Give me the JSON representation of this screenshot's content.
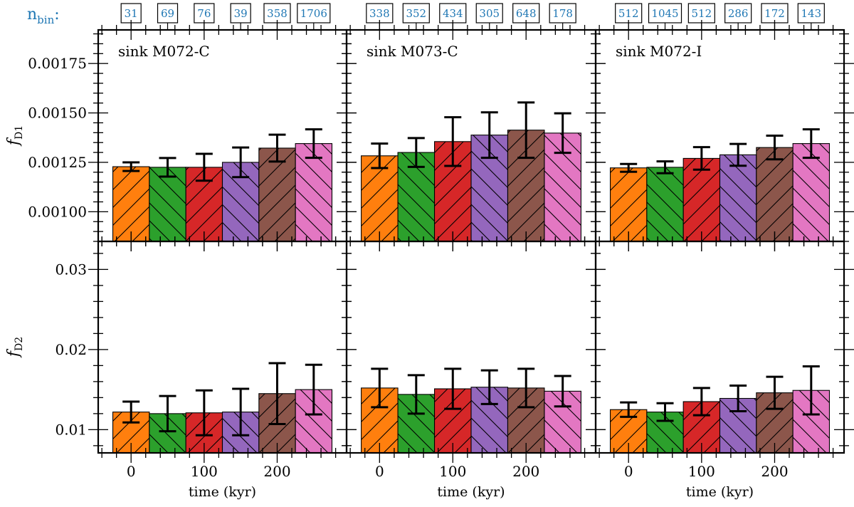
{
  "chart_data": {
    "type": "bar",
    "nbin_label": "n",
    "nbin_label_sub": "bin",
    "nbin_label_suffix": ":",
    "xlabel": "time (kyr)",
    "xticks": [
      0,
      100,
      200
    ],
    "x_centers": [
      0,
      50,
      100,
      150,
      200,
      250
    ],
    "bar_width": 50,
    "xlim": [
      -45,
      295
    ],
    "colors": [
      "#ff7f0e",
      "#2ca02c",
      "#d62728",
      "#9467bd",
      "#8c564b",
      "#e377c2"
    ],
    "hatch": [
      "/",
      "\\",
      "/",
      "\\",
      "/",
      "\\"
    ],
    "row_labels": [
      {
        "main": "f",
        "sub": "D1"
      },
      {
        "main": "f",
        "sub": "D2"
      }
    ],
    "row_ylims": [
      [
        0.00085,
        0.00192
      ],
      [
        0.0071,
        0.0335
      ]
    ],
    "row_ticks": [
      [
        "0.00100",
        "0.00125",
        "0.00150",
        "0.00175"
      ],
      [
        "0.01",
        "0.02",
        "0.03"
      ]
    ],
    "row_tick_values": [
      [
        0.001,
        0.00125,
        0.0015,
        0.00175
      ],
      [
        0.01,
        0.02,
        0.03
      ]
    ],
    "columns": [
      {
        "title": "sink M072-C",
        "nbin": [
          "31",
          "69",
          "76",
          "39",
          "358",
          "1706"
        ],
        "fD1": {
          "values": [
            0.001228,
            0.001225,
            0.001225,
            0.00125,
            0.001322,
            0.001345
          ],
          "err": [
            2.2e-05,
            4.7e-05,
            6.8e-05,
            7.5e-05,
            6.8e-05,
            7.2e-05
          ]
        },
        "fD2": {
          "values": [
            0.0122,
            0.012,
            0.0121,
            0.0122,
            0.0145,
            0.015
          ],
          "err": [
            0.0013,
            0.0022,
            0.0028,
            0.0029,
            0.0038,
            0.0031
          ]
        }
      },
      {
        "title": "sink M073-C",
        "nbin": [
          "338",
          "352",
          "434",
          "305",
          "648",
          "178"
        ],
        "fD1": {
          "values": [
            0.001283,
            0.0013,
            0.001355,
            0.001388,
            0.001413,
            0.001398
          ],
          "err": [
            6.2e-05,
            7.3e-05,
            0.000123,
            0.000115,
            0.00014,
            0.0001
          ]
        },
        "fD2": {
          "values": [
            0.0152,
            0.0144,
            0.0151,
            0.0153,
            0.0152,
            0.0148
          ],
          "err": [
            0.0024,
            0.0024,
            0.0025,
            0.0021,
            0.0024,
            0.0019
          ]
        }
      },
      {
        "title": "sink M072-I",
        "nbin": [
          "512",
          "1045",
          "512",
          "286",
          "172",
          "143"
        ],
        "fD1": {
          "values": [
            0.001222,
            0.001225,
            0.00127,
            0.001288,
            0.001325,
            0.001345
          ],
          "err": [
            2e-05,
            3e-05,
            5.7e-05,
            5.5e-05,
            6e-05,
            7.2e-05
          ]
        },
        "fD2": {
          "values": [
            0.0125,
            0.0122,
            0.0135,
            0.0139,
            0.0146,
            0.0149
          ],
          "err": [
            0.0009,
            0.0011,
            0.0017,
            0.0016,
            0.002,
            0.003
          ]
        }
      }
    ]
  }
}
